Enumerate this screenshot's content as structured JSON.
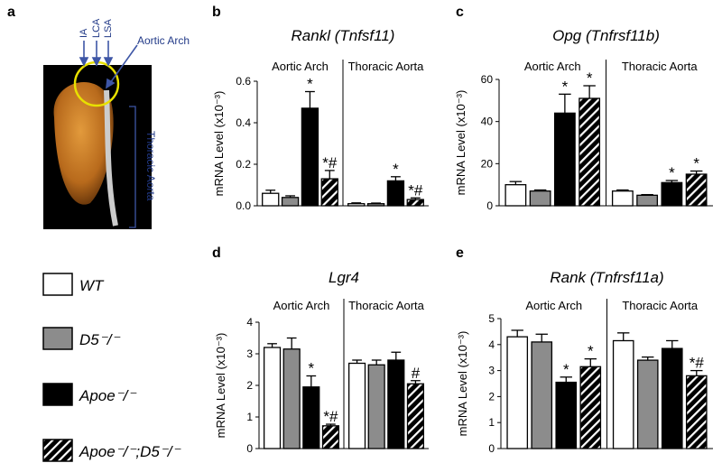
{
  "panel_a": {
    "letter": "a",
    "labels": [
      "IA",
      "LCA",
      "LSA"
    ],
    "arch": "Aortic Arch",
    "thoracic": "Thoracic Aorta"
  },
  "legend": [
    {
      "name": "WT",
      "fill": "#ffffff",
      "hatch": false
    },
    {
      "name": "D5⁻/⁻",
      "fill": "#8c8c8c",
      "hatch": false
    },
    {
      "name": "Apoe⁻/⁻",
      "fill": "#000000",
      "hatch": false
    },
    {
      "name": "Apoe⁻/⁻;D5⁻/⁻",
      "fill": "#000000",
      "hatch": true
    }
  ],
  "chart_data": [
    {
      "type": "bar",
      "panel": "b",
      "title": "Rankl (Tnfsf11)",
      "y_label": "mRNA Level (x10⁻³)",
      "categories": [
        "Aortic Arch",
        "Thoracic Aorta"
      ],
      "ylim": [
        0,
        0.6
      ],
      "yticks": [
        {
          "value": 0,
          "label": "0.0"
        },
        0.2,
        0.4,
        0.6
      ],
      "series": [
        {
          "values": [
            0.06,
            0.01
          ],
          "errors": [
            0.015,
            0.004
          ],
          "labels": [
            null,
            null
          ]
        },
        {
          "values": [
            0.04,
            0.01
          ],
          "errors": [
            0.008,
            0.003
          ],
          "labels": [
            null,
            null
          ]
        },
        {
          "values": [
            0.47,
            0.12
          ],
          "errors": [
            0.08,
            0.02
          ],
          "labels": [
            "*",
            "*"
          ]
        },
        {
          "values": [
            0.13,
            0.03
          ],
          "errors": [
            0.04,
            0.008
          ],
          "labels": [
            "*#",
            "*#"
          ]
        }
      ]
    },
    {
      "type": "bar",
      "panel": "c",
      "title": "Opg (Tnfrsf11b)",
      "y_label": "mRNA Level (x10⁻³)",
      "categories": [
        "Aortic Arch",
        "Thoracic Aorta"
      ],
      "ylim": [
        0,
        60
      ],
      "yticks": [
        0,
        20,
        40,
        60
      ],
      "series": [
        {
          "values": [
            10,
            7
          ],
          "errors": [
            1.5,
            0.5
          ],
          "labels": [
            null,
            null
          ]
        },
        {
          "values": [
            7,
            5
          ],
          "errors": [
            0.5,
            0.3
          ],
          "labels": [
            null,
            null
          ]
        },
        {
          "values": [
            44,
            11
          ],
          "errors": [
            9,
            1
          ],
          "labels": [
            "*",
            "*"
          ]
        },
        {
          "values": [
            51,
            15
          ],
          "errors": [
            6,
            1.5
          ],
          "labels": [
            "*",
            "*"
          ]
        }
      ]
    },
    {
      "type": "bar",
      "panel": "d",
      "title": "Lgr4",
      "y_label": "mRNA Level (x10⁻³)",
      "categories": [
        "Aortic Arch",
        "Thoracic Aorta"
      ],
      "ylim": [
        0,
        4
      ],
      "yticks": [
        0,
        1,
        2,
        3,
        4
      ],
      "series": [
        {
          "values": [
            3.2,
            2.7
          ],
          "errors": [
            0.12,
            0.1
          ],
          "labels": [
            null,
            null
          ]
        },
        {
          "values": [
            3.15,
            2.65
          ],
          "errors": [
            0.35,
            0.15
          ],
          "labels": [
            null,
            null
          ]
        },
        {
          "values": [
            1.95,
            2.8
          ],
          "errors": [
            0.35,
            0.25
          ],
          "labels": [
            "*",
            null
          ]
        },
        {
          "values": [
            0.72,
            2.05
          ],
          "errors": [
            0.05,
            0.1
          ],
          "labels": [
            "*#",
            "#"
          ]
        }
      ]
    },
    {
      "type": "bar",
      "panel": "e",
      "title": "Rank (Tnfrsf11a)",
      "y_label": "mRNA Level (x10⁻³)",
      "categories": [
        "Aortic Arch",
        "Thoracic Aorta"
      ],
      "ylim": [
        0,
        5
      ],
      "yticks": [
        0,
        1,
        2,
        3,
        4,
        5
      ],
      "series": [
        {
          "values": [
            4.3,
            4.15
          ],
          "errors": [
            0.25,
            0.3
          ],
          "labels": [
            null,
            null
          ]
        },
        {
          "values": [
            4.1,
            3.4
          ],
          "errors": [
            0.3,
            0.12
          ],
          "labels": [
            null,
            null
          ]
        },
        {
          "values": [
            2.55,
            3.85
          ],
          "errors": [
            0.2,
            0.3
          ],
          "labels": [
            "*",
            null
          ]
        },
        {
          "values": [
            3.15,
            2.8
          ],
          "errors": [
            0.3,
            0.2
          ],
          "labels": [
            "*",
            "*#"
          ]
        }
      ]
    }
  ]
}
